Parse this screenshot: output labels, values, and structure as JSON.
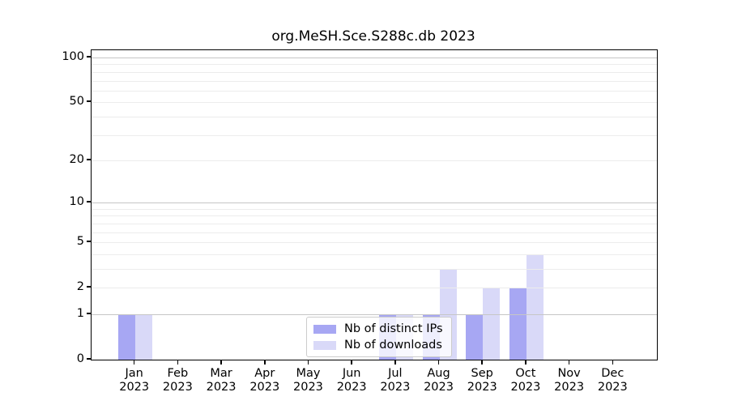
{
  "chart_data": {
    "type": "bar",
    "title": "org.MeSH.Sce.S288c.db 2023",
    "x_categories": [
      "Jan",
      "Feb",
      "Mar",
      "Apr",
      "May",
      "Jun",
      "Jul",
      "Aug",
      "Sep",
      "Oct",
      "Nov",
      "Dec"
    ],
    "x_year": "2023",
    "series": [
      {
        "name": "Nb of distinct IPs",
        "color": "#a7a7f3",
        "values": [
          1,
          0,
          0,
          0,
          0,
          0,
          1,
          1,
          1,
          2,
          0,
          0
        ]
      },
      {
        "name": "Nb of downloads",
        "color": "#d9d9f8",
        "values": [
          1,
          0,
          0,
          0,
          0,
          0,
          1,
          3,
          2,
          4,
          0,
          0
        ]
      }
    ],
    "y_scale": "log1p",
    "y_ticks": [
      0,
      1,
      2,
      5,
      10,
      20,
      50,
      100
    ],
    "y_max": 112,
    "grid": "major and minor horizontal gridlines",
    "legend_position": "lower center"
  },
  "colors": {
    "bar_distinct_ips": "#a7a7f3",
    "bar_downloads": "#d9d9f8",
    "major_grid": "#c6c6c6",
    "minor_grid": "#ececec",
    "axis": "#000000",
    "legend_border": "#cccccc"
  }
}
